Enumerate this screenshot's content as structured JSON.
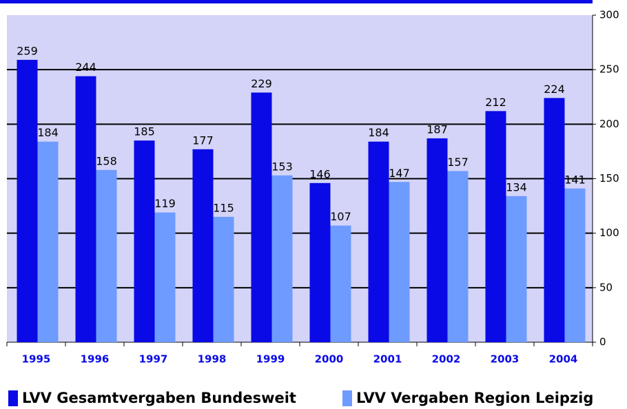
{
  "chart_data": {
    "type": "bar",
    "categories": [
      "1995",
      "1996",
      "1997",
      "1998",
      "1999",
      "2000",
      "2001",
      "2002",
      "2003",
      "2004"
    ],
    "series": [
      {
        "name": "LVV Gesamtvergaben Bundesweit",
        "color": "#0a0ae6",
        "values": [
          259,
          244,
          185,
          177,
          229,
          146,
          184,
          187,
          212,
          224
        ]
      },
      {
        "name": "LVV Vergaben Region Leipzig",
        "color": "#6e9bff",
        "values": [
          184,
          158,
          119,
          115,
          153,
          107,
          147,
          157,
          134,
          141
        ]
      }
    ],
    "ylim": [
      0,
      300
    ],
    "yticks": [
      0,
      50,
      100,
      150,
      200,
      250,
      300
    ],
    "grid": true
  }
}
